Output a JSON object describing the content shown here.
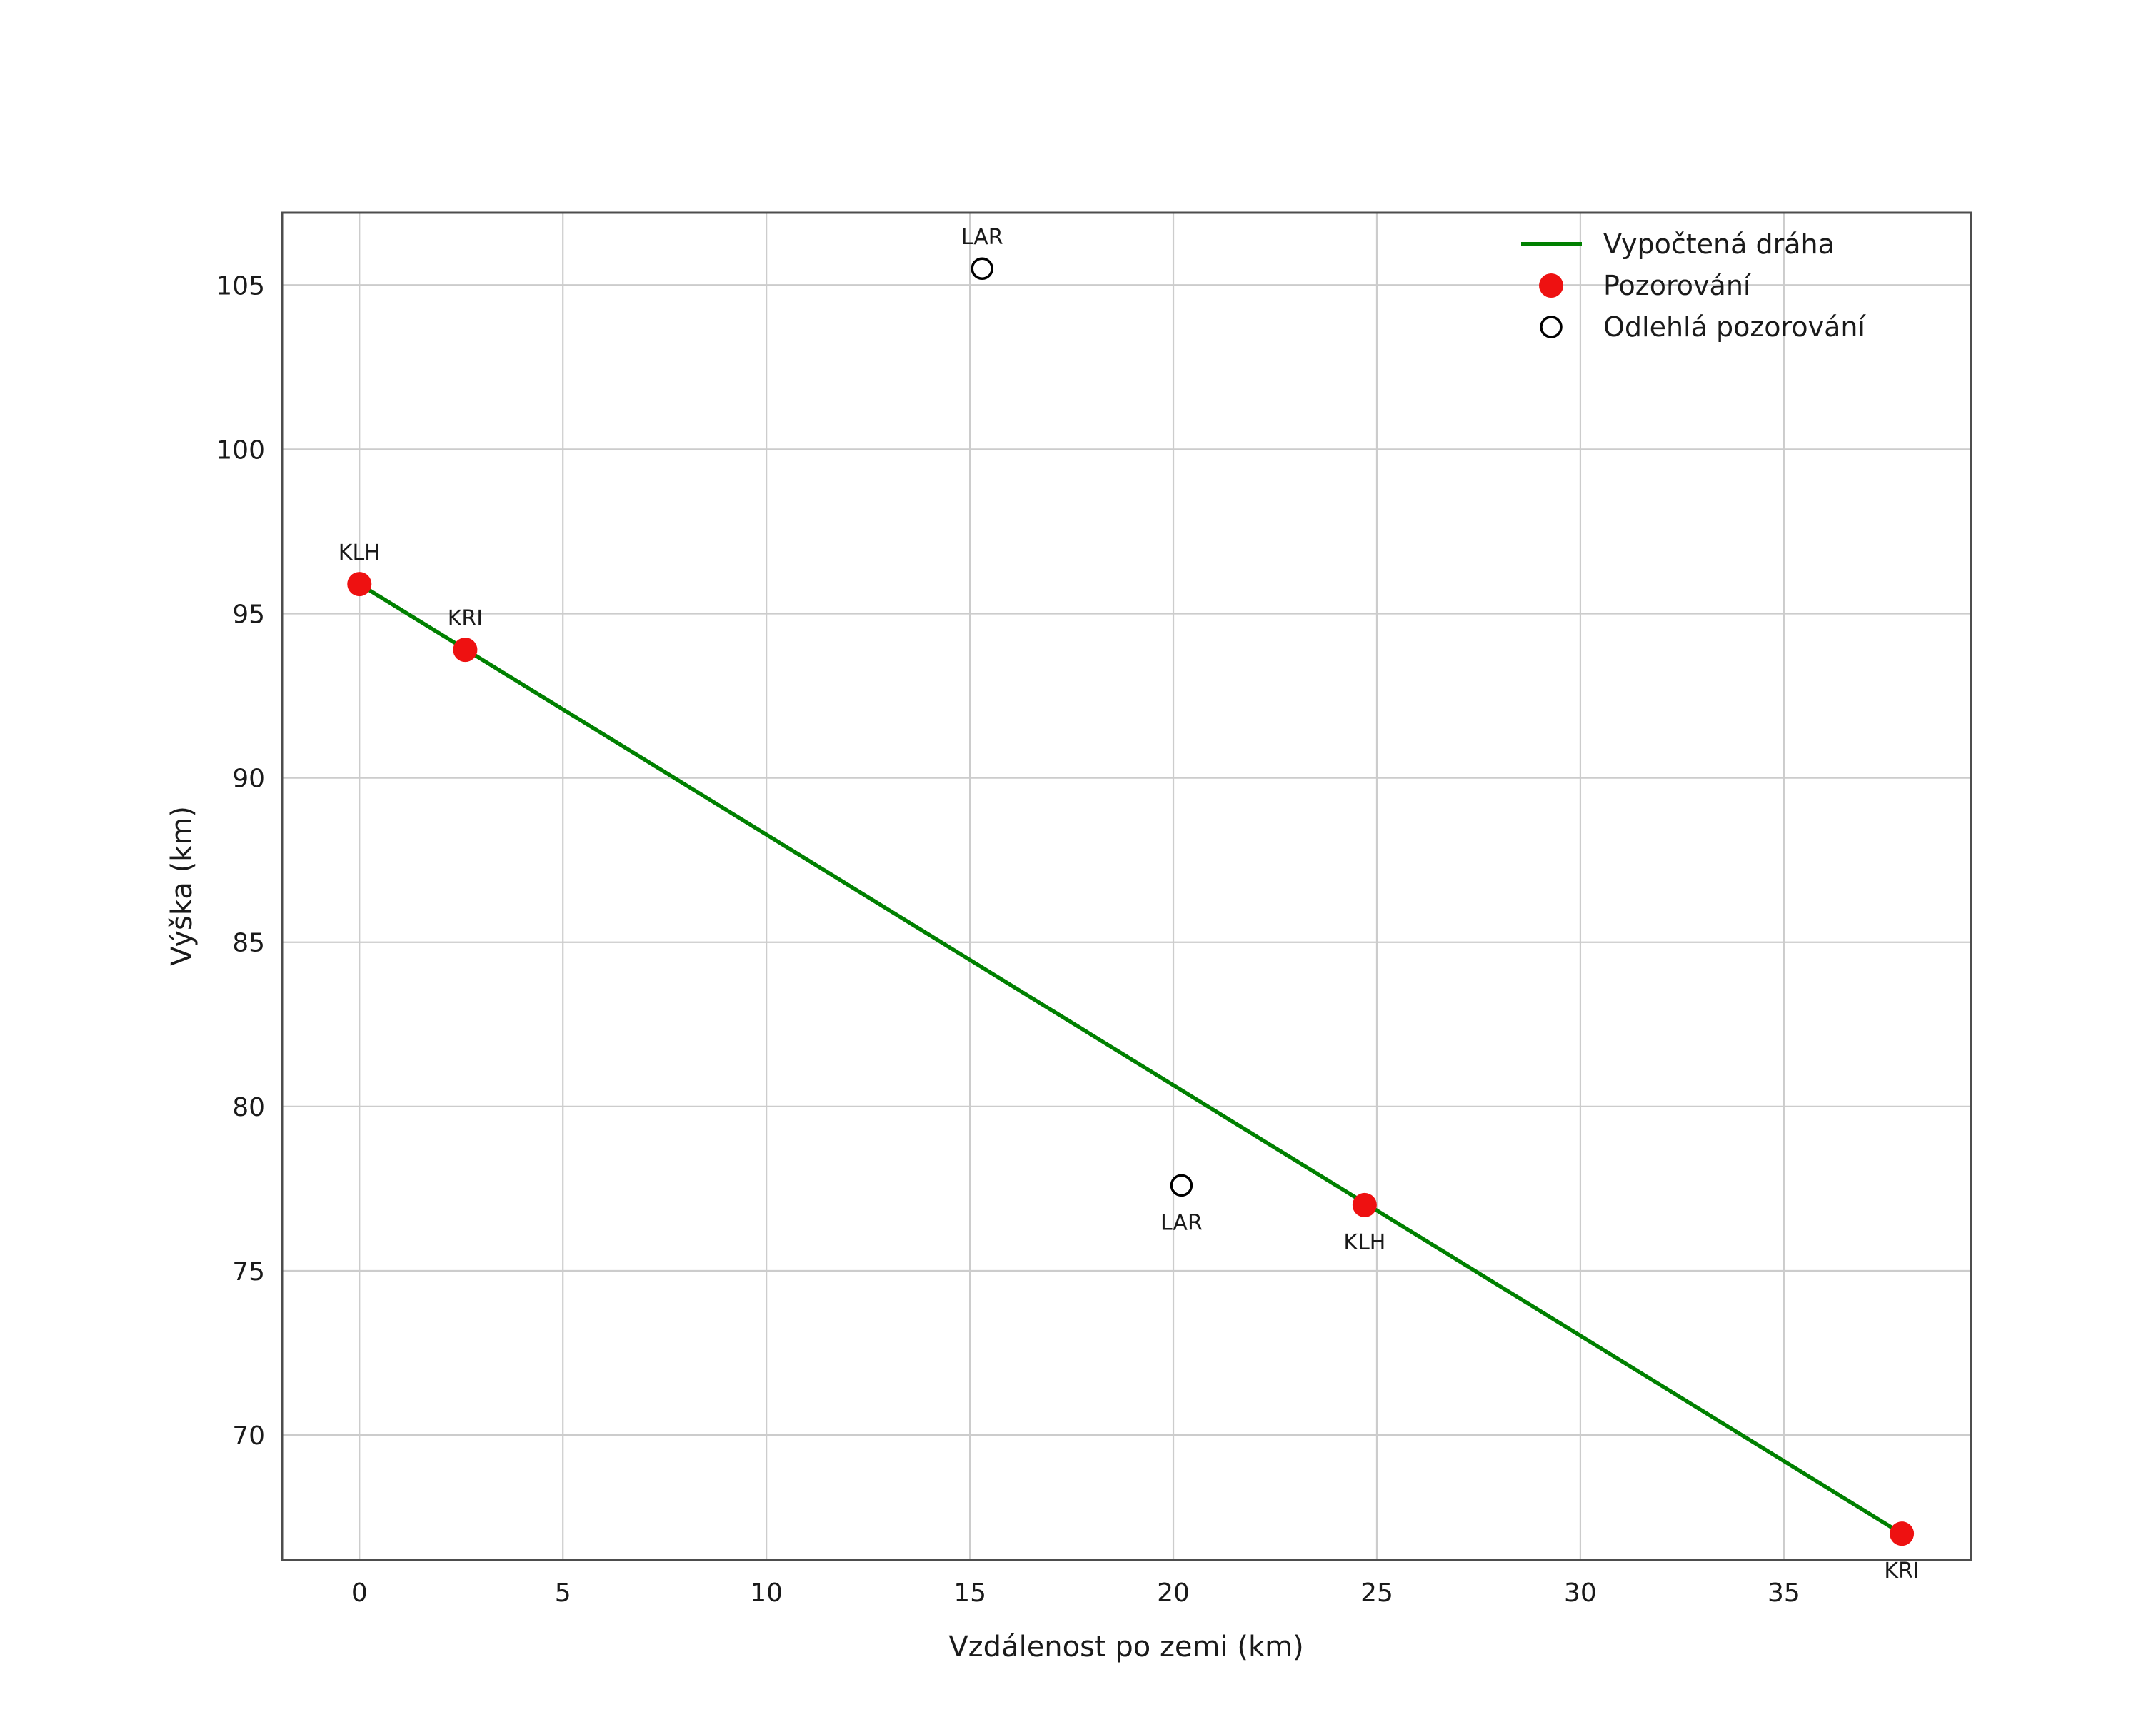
{
  "figure": {
    "background": "#ffffff"
  },
  "chart_data": {
    "type": "scatter",
    "title": "",
    "xlabel": "Vzdálenost po zemi (km)",
    "ylabel": "Výška (km)",
    "xlim": [
      -1.9,
      39.6
    ],
    "ylim": [
      66.2,
      107.2
    ],
    "xticks": [
      0,
      5,
      10,
      15,
      20,
      25,
      30,
      35
    ],
    "yticks": [
      70,
      75,
      80,
      85,
      90,
      95,
      100,
      105
    ],
    "grid": true,
    "legend": {
      "position": "top-right"
    },
    "style": {
      "grid_color": "#cccccc",
      "frame_color": "#4d4d4d",
      "text_color": "#1a1a1a",
      "background": "#ffffff"
    },
    "series": [
      {
        "name": "Vypočtená dráha",
        "type": "line",
        "color": "#008000",
        "points": [
          {
            "x": 0.0,
            "y": 95.9
          },
          {
            "x": 37.9,
            "y": 67.0
          }
        ]
      },
      {
        "name": "Pozorování",
        "type": "scatter",
        "color": "#ee1111",
        "points": [
          {
            "x": 0.0,
            "y": 95.9,
            "label": "KLH",
            "label_pos": "above"
          },
          {
            "x": 2.6,
            "y": 93.9,
            "label": "KRI",
            "label_pos": "above"
          },
          {
            "x": 24.7,
            "y": 77.0,
            "label": "KLH",
            "label_pos": "below"
          },
          {
            "x": 37.9,
            "y": 67.0,
            "label": "KRI",
            "label_pos": "below"
          }
        ]
      },
      {
        "name": "Odlehlá pozorování",
        "type": "scatter_open",
        "color": "#000000",
        "points": [
          {
            "x": 15.3,
            "y": 105.5,
            "label": "LAR",
            "label_pos": "above"
          },
          {
            "x": 20.2,
            "y": 77.6,
            "label": "LAR",
            "label_pos": "below"
          }
        ]
      }
    ]
  }
}
